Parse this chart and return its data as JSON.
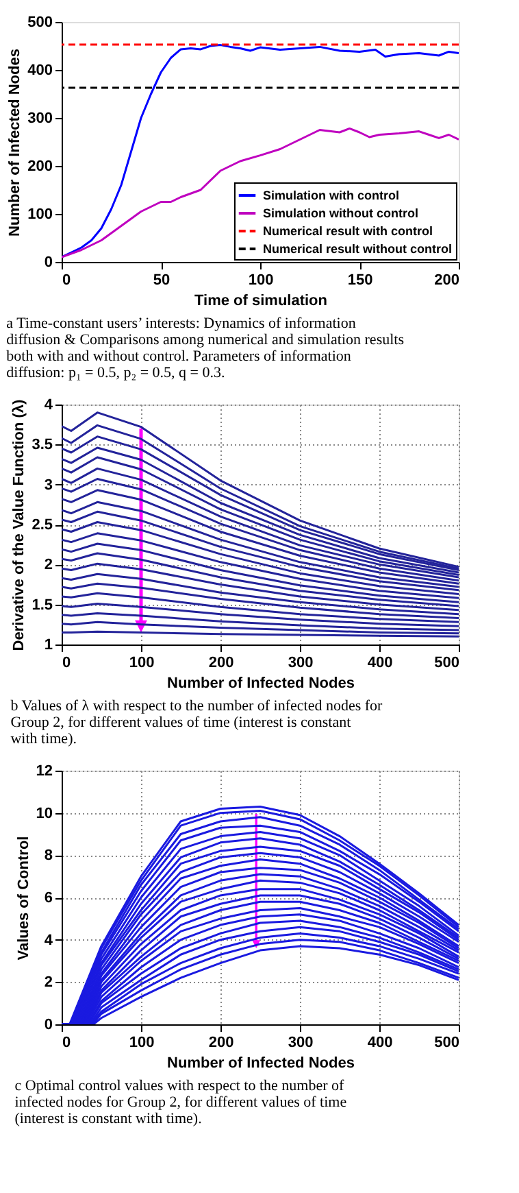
{
  "chart_data": [
    {
      "type": "line",
      "xlabel": "Time of simulation",
      "ylabel": "Number of Infected Nodes",
      "xlim": [
        0,
        200
      ],
      "xticks": [
        0,
        50,
        100,
        150,
        200
      ],
      "ylim": [
        0,
        500
      ],
      "yticks": [
        0,
        100,
        200,
        300,
        400,
        500
      ],
      "grid": false,
      "legend": "bottom right",
      "line_style": "solid",
      "series": [
        {
          "name": "Simulation with control",
          "color": "#0000ff",
          "x": [
            0,
            5,
            10,
            15,
            20,
            25,
            30,
            35,
            40,
            45,
            50,
            55,
            60,
            65,
            70,
            75,
            80,
            85,
            90,
            95,
            100,
            110,
            120,
            130,
            140,
            150,
            158,
            163,
            170,
            180,
            190,
            195,
            200
          ],
          "values": [
            10,
            20,
            30,
            45,
            70,
            110,
            160,
            230,
            300,
            350,
            395,
            425,
            443,
            445,
            443,
            450,
            452,
            448,
            445,
            440,
            447,
            442,
            445,
            448,
            440,
            438,
            442,
            428,
            433,
            435,
            430,
            438,
            435
          ]
        },
        {
          "name": "Simulation without control",
          "color": "#bf00bf",
          "x": [
            0,
            10,
            20,
            30,
            40,
            50,
            55,
            60,
            70,
            80,
            90,
            100,
            110,
            120,
            130,
            140,
            145,
            150,
            155,
            160,
            170,
            180,
            185,
            190,
            195,
            200
          ],
          "values": [
            10,
            25,
            45,
            75,
            105,
            125,
            125,
            135,
            150,
            190,
            210,
            222,
            235,
            255,
            275,
            270,
            278,
            270,
            260,
            265,
            268,
            272,
            265,
            258,
            265,
            255
          ]
        }
      ],
      "ref_lines": [
        {
          "axis": "y",
          "value": 453,
          "label": "Numerical result with control",
          "color": "#ff0000",
          "line_style": "dashed"
        },
        {
          "axis": "y",
          "value": 363,
          "label": "Numerical result without control",
          "color": "#000000",
          "line_style": "dashed"
        }
      ],
      "annotations": [
        "a Time-constant users’ interests: Dynamics of information diffusion & Comparisons among numerical and simulation results both with and without control. Parameters of information diffusion: p₁ = 0.5,  p₂ = 0.5, q = 0.3."
      ]
    },
    {
      "type": "line",
      "xlabel": "Number of Infected Nodes",
      "ylabel": "Derivative of the Value Function (λ)",
      "xlim": [
        0,
        500
      ],
      "xticks": [
        0,
        100,
        200,
        300,
        400,
        500
      ],
      "ylim": [
        1,
        4
      ],
      "yticks": [
        1,
        1.5,
        2,
        2.5,
        3,
        3.5,
        4
      ],
      "grid": true,
      "line_style": "solid",
      "series": [
        {
          "color": "#23239a",
          "x": [
            0,
            12,
            45,
            100,
            200,
            300,
            400,
            500
          ],
          "values": [
            3.73,
            3.67,
            3.9,
            3.72,
            3.05,
            2.55,
            2.2,
            1.97
          ]
        },
        {
          "color": "#23239a",
          "x": [
            0,
            12,
            45,
            100,
            200,
            300,
            400,
            500
          ],
          "values": [
            3.58,
            3.52,
            3.74,
            3.57,
            2.95,
            2.48,
            2.16,
            1.95
          ]
        },
        {
          "color": "#23239a",
          "x": [
            0,
            12,
            45,
            100,
            200,
            300,
            400,
            500
          ],
          "values": [
            3.45,
            3.4,
            3.6,
            3.44,
            2.87,
            2.43,
            2.13,
            1.93
          ]
        },
        {
          "color": "#23239a",
          "x": [
            0,
            12,
            45,
            100,
            200,
            300,
            400,
            500
          ],
          "values": [
            3.32,
            3.27,
            3.46,
            3.31,
            2.77,
            2.37,
            2.08,
            1.9
          ]
        },
        {
          "color": "#23239a",
          "x": [
            0,
            12,
            45,
            100,
            200,
            300,
            400,
            500
          ],
          "values": [
            3.2,
            3.15,
            3.34,
            3.19,
            2.69,
            2.31,
            2.04,
            1.87
          ]
        },
        {
          "color": "#23239a",
          "x": [
            0,
            12,
            45,
            100,
            200,
            300,
            400,
            500
          ],
          "values": [
            3.07,
            3.02,
            3.2,
            3.06,
            2.6,
            2.24,
            2.0,
            1.84
          ]
        },
        {
          "color": "#23239a",
          "x": [
            0,
            12,
            45,
            100,
            200,
            300,
            400,
            500
          ],
          "values": [
            2.95,
            2.91,
            3.07,
            2.94,
            2.51,
            2.18,
            1.95,
            1.8
          ]
        },
        {
          "color": "#23239a",
          "x": [
            0,
            12,
            45,
            100,
            200,
            300,
            400,
            500
          ],
          "values": [
            2.82,
            2.78,
            2.93,
            2.81,
            2.41,
            2.11,
            1.9,
            1.76
          ]
        },
        {
          "color": "#23239a",
          "x": [
            0,
            12,
            45,
            100,
            200,
            300,
            400,
            500
          ],
          "values": [
            2.68,
            2.64,
            2.78,
            2.67,
            2.31,
            2.03,
            1.84,
            1.72
          ]
        },
        {
          "color": "#23239a",
          "x": [
            0,
            12,
            45,
            100,
            200,
            300,
            400,
            500
          ],
          "values": [
            2.56,
            2.53,
            2.66,
            2.55,
            2.22,
            1.97,
            1.79,
            1.68
          ]
        },
        {
          "color": "#23239a",
          "x": [
            0,
            12,
            45,
            100,
            200,
            300,
            400,
            500
          ],
          "values": [
            2.44,
            2.41,
            2.53,
            2.43,
            2.13,
            1.89,
            1.73,
            1.63
          ]
        },
        {
          "color": "#23239a",
          "x": [
            0,
            12,
            45,
            100,
            200,
            300,
            400,
            500
          ],
          "values": [
            2.31,
            2.28,
            2.39,
            2.3,
            2.03,
            1.82,
            1.67,
            1.58
          ]
        },
        {
          "color": "#23239a",
          "x": [
            0,
            12,
            45,
            100,
            200,
            300,
            400,
            500
          ],
          "values": [
            2.19,
            2.16,
            2.26,
            2.18,
            1.93,
            1.74,
            1.61,
            1.53
          ]
        },
        {
          "color": "#23239a",
          "x": [
            0,
            12,
            45,
            100,
            200,
            300,
            400,
            500
          ],
          "values": [
            2.07,
            2.05,
            2.14,
            2.06,
            1.84,
            1.67,
            1.56,
            1.48
          ]
        },
        {
          "color": "#23239a",
          "x": [
            0,
            12,
            45,
            100,
            200,
            300,
            400,
            500
          ],
          "values": [
            1.95,
            1.93,
            2.01,
            1.94,
            1.75,
            1.6,
            1.5,
            1.43
          ]
        },
        {
          "color": "#23239a",
          "x": [
            0,
            12,
            45,
            100,
            200,
            300,
            400,
            500
          ],
          "values": [
            1.83,
            1.81,
            1.88,
            1.82,
            1.65,
            1.53,
            1.44,
            1.38
          ]
        },
        {
          "color": "#23239a",
          "x": [
            0,
            12,
            45,
            100,
            200,
            300,
            400,
            500
          ],
          "values": [
            1.72,
            1.7,
            1.76,
            1.71,
            1.57,
            1.46,
            1.38,
            1.33
          ]
        },
        {
          "color": "#23239a",
          "x": [
            0,
            12,
            45,
            100,
            200,
            300,
            400,
            500
          ],
          "values": [
            1.6,
            1.59,
            1.64,
            1.59,
            1.47,
            1.38,
            1.32,
            1.28
          ]
        },
        {
          "color": "#23239a",
          "x": [
            0,
            12,
            45,
            100,
            200,
            300,
            400,
            500
          ],
          "values": [
            1.48,
            1.47,
            1.51,
            1.47,
            1.38,
            1.31,
            1.26,
            1.23
          ]
        },
        {
          "color": "#23239a",
          "x": [
            0,
            12,
            45,
            100,
            200,
            300,
            400,
            500
          ],
          "values": [
            1.37,
            1.36,
            1.39,
            1.36,
            1.29,
            1.24,
            1.2,
            1.18
          ]
        },
        {
          "color": "#23239a",
          "x": [
            0,
            12,
            45,
            100,
            200,
            300,
            400,
            500
          ],
          "values": [
            1.26,
            1.25,
            1.28,
            1.25,
            1.21,
            1.18,
            1.15,
            1.14
          ]
        },
        {
          "color": "#23239a",
          "x": [
            0,
            12,
            45,
            100,
            200,
            300,
            400,
            500
          ],
          "values": [
            1.15,
            1.15,
            1.16,
            1.15,
            1.13,
            1.12,
            1.11,
            1.1
          ]
        }
      ],
      "annotations": [
        "b Values of λ with respect to the number of infected nodes for Group 2, for different values of time (interest is constant with time)."
      ]
    },
    {
      "type": "line",
      "xlabel": "Number of Infected Nodes",
      "ylabel": "Values of Control",
      "xlim": [
        0,
        500
      ],
      "xticks": [
        0,
        100,
        200,
        300,
        400,
        500
      ],
      "ylim": [
        0,
        12
      ],
      "yticks": [
        0,
        2,
        4,
        6,
        8,
        10,
        12
      ],
      "grid": true,
      "line_style": "solid",
      "series": [
        {
          "color": "#1a1ae0",
          "x": [
            0,
            10,
            50,
            100,
            150,
            200,
            250,
            300,
            350,
            400,
            450,
            500
          ],
          "values": [
            0,
            0,
            3.7,
            7.0,
            9.6,
            10.2,
            10.3,
            9.9,
            8.9,
            7.6,
            6.2,
            4.7
          ]
        },
        {
          "color": "#1a1ae0",
          "x": [
            0,
            11,
            50,
            100,
            150,
            200,
            250,
            300,
            350,
            400,
            450,
            500
          ],
          "values": [
            0,
            0,
            3.6,
            6.8,
            9.4,
            10.0,
            10.1,
            9.7,
            8.7,
            7.5,
            6.1,
            4.6
          ]
        },
        {
          "color": "#1a1ae0",
          "x": [
            0,
            12,
            50,
            100,
            150,
            200,
            250,
            300,
            350,
            400,
            450,
            500
          ],
          "values": [
            0,
            0,
            3.4,
            6.6,
            9.0,
            9.6,
            9.8,
            9.4,
            8.5,
            7.3,
            5.9,
            4.5
          ]
        },
        {
          "color": "#1a1ae0",
          "x": [
            0,
            14,
            50,
            100,
            150,
            200,
            250,
            300,
            350,
            400,
            450,
            500
          ],
          "values": [
            0,
            0,
            3.3,
            6.3,
            8.7,
            9.3,
            9.4,
            9.1,
            8.2,
            7.1,
            5.8,
            4.4
          ]
        },
        {
          "color": "#1a1ae0",
          "x": [
            0,
            15,
            50,
            100,
            150,
            200,
            250,
            300,
            350,
            400,
            450,
            500
          ],
          "values": [
            0,
            0,
            3.1,
            6.0,
            8.3,
            8.9,
            9.1,
            8.8,
            8.0,
            6.8,
            5.6,
            4.2
          ]
        },
        {
          "color": "#1a1ae0",
          "x": [
            0,
            17,
            50,
            100,
            150,
            200,
            250,
            300,
            350,
            400,
            450,
            500
          ],
          "values": [
            0,
            0,
            2.9,
            5.7,
            7.9,
            8.6,
            8.8,
            8.5,
            7.7,
            6.6,
            5.4,
            4.1
          ]
        },
        {
          "color": "#1a1ae0",
          "x": [
            0,
            18,
            50,
            100,
            150,
            200,
            250,
            300,
            350,
            400,
            450,
            500
          ],
          "values": [
            0,
            0,
            2.8,
            5.4,
            7.6,
            8.2,
            8.4,
            8.2,
            7.5,
            6.4,
            5.3,
            4.0
          ]
        },
        {
          "color": "#1a1ae0",
          "x": [
            0,
            20,
            50,
            100,
            150,
            200,
            250,
            300,
            350,
            400,
            450,
            500
          ],
          "values": [
            0,
            0,
            2.6,
            5.2,
            7.2,
            7.9,
            8.1,
            7.9,
            7.2,
            6.2,
            5.1,
            3.9
          ]
        },
        {
          "color": "#1a1ae0",
          "x": [
            0,
            21,
            50,
            100,
            150,
            200,
            250,
            300,
            350,
            400,
            450,
            500
          ],
          "values": [
            0,
            0,
            2.4,
            4.9,
            6.9,
            7.5,
            7.8,
            7.6,
            6.9,
            6.0,
            4.9,
            3.7
          ]
        },
        {
          "color": "#1a1ae0",
          "x": [
            0,
            23,
            50,
            100,
            150,
            200,
            250,
            300,
            350,
            400,
            450,
            500
          ],
          "values": [
            0,
            0,
            2.3,
            4.6,
            6.5,
            7.2,
            7.4,
            7.3,
            6.7,
            5.8,
            4.8,
            3.6
          ]
        },
        {
          "color": "#1a1ae0",
          "x": [
            0,
            24,
            50,
            100,
            150,
            200,
            250,
            300,
            350,
            400,
            450,
            500
          ],
          "values": [
            0,
            0,
            2.1,
            4.3,
            6.1,
            6.8,
            7.1,
            7.0,
            6.4,
            5.6,
            4.6,
            3.5
          ]
        },
        {
          "color": "#1a1ae0",
          "x": [
            0,
            26,
            50,
            100,
            150,
            200,
            250,
            300,
            350,
            400,
            450,
            500
          ],
          "values": [
            0,
            0,
            2.0,
            4.1,
            5.8,
            6.4,
            6.8,
            6.7,
            6.2,
            5.4,
            4.4,
            3.4
          ]
        },
        {
          "color": "#1a1ae0",
          "x": [
            0,
            27,
            50,
            100,
            150,
            200,
            250,
            300,
            350,
            400,
            450,
            500
          ],
          "values": [
            0,
            0,
            1.8,
            3.8,
            5.4,
            6.1,
            6.4,
            6.4,
            5.9,
            5.2,
            4.3,
            3.2
          ]
        },
        {
          "color": "#1a1ae0",
          "x": [
            0,
            28,
            50,
            100,
            150,
            200,
            250,
            300,
            350,
            400,
            450,
            500
          ],
          "values": [
            0,
            0,
            1.6,
            3.5,
            5.1,
            5.7,
            6.1,
            6.1,
            5.7,
            5.0,
            4.1,
            3.1
          ]
        },
        {
          "color": "#1a1ae0",
          "x": [
            0,
            30,
            50,
            100,
            150,
            200,
            250,
            300,
            350,
            400,
            450,
            500
          ],
          "values": [
            0,
            0,
            1.5,
            3.2,
            4.7,
            5.4,
            5.8,
            5.8,
            5.4,
            4.8,
            3.9,
            3.0
          ]
        },
        {
          "color": "#1a1ae0",
          "x": [
            0,
            31,
            50,
            100,
            150,
            200,
            250,
            300,
            350,
            400,
            450,
            500
          ],
          "values": [
            0,
            0,
            1.3,
            3.0,
            4.4,
            5.0,
            5.4,
            5.5,
            5.1,
            4.6,
            3.8,
            2.9
          ]
        },
        {
          "color": "#1a1ae0",
          "x": [
            0,
            33,
            50,
            100,
            150,
            200,
            250,
            300,
            350,
            400,
            450,
            500
          ],
          "values": [
            0,
            0,
            1.1,
            2.7,
            4.0,
            4.7,
            5.1,
            5.2,
            4.9,
            4.3,
            3.6,
            2.7
          ]
        },
        {
          "color": "#1a1ae0",
          "x": [
            0,
            34,
            50,
            100,
            150,
            200,
            250,
            300,
            350,
            400,
            450,
            500
          ],
          "values": [
            0,
            0,
            1.0,
            2.4,
            3.6,
            4.3,
            4.8,
            4.9,
            4.6,
            4.1,
            3.4,
            2.6
          ]
        },
        {
          "color": "#1a1ae0",
          "x": [
            0,
            36,
            50,
            100,
            150,
            200,
            250,
            300,
            350,
            400,
            450,
            500
          ],
          "values": [
            0,
            0,
            0.8,
            2.1,
            3.3,
            4.0,
            4.4,
            4.6,
            4.4,
            3.9,
            3.3,
            2.5
          ]
        },
        {
          "color": "#1a1ae0",
          "x": [
            0,
            37,
            50,
            100,
            150,
            200,
            250,
            300,
            350,
            400,
            450,
            500
          ],
          "values": [
            0,
            0,
            0.6,
            1.9,
            2.9,
            3.6,
            4.1,
            4.3,
            4.1,
            3.7,
            3.1,
            2.4
          ]
        },
        {
          "color": "#1a1ae0",
          "x": [
            0,
            39,
            50,
            100,
            150,
            200,
            250,
            300,
            350,
            400,
            450,
            500
          ],
          "values": [
            0,
            0,
            0.5,
            1.6,
            2.6,
            3.3,
            3.8,
            4.0,
            3.9,
            3.5,
            2.9,
            2.2
          ]
        },
        {
          "color": "#1a1ae0",
          "x": [
            0,
            40,
            50,
            100,
            150,
            200,
            250,
            300,
            350,
            400,
            450,
            500
          ],
          "values": [
            0,
            0,
            0.3,
            1.3,
            2.2,
            2.9,
            3.5,
            3.7,
            3.6,
            3.3,
            2.8,
            2.1
          ]
        }
      ],
      "annotations": [
        "c Optimal control values with respect to the number of infected nodes for Group 2, for different values of time (interest is constant with time)."
      ]
    }
  ]
}
